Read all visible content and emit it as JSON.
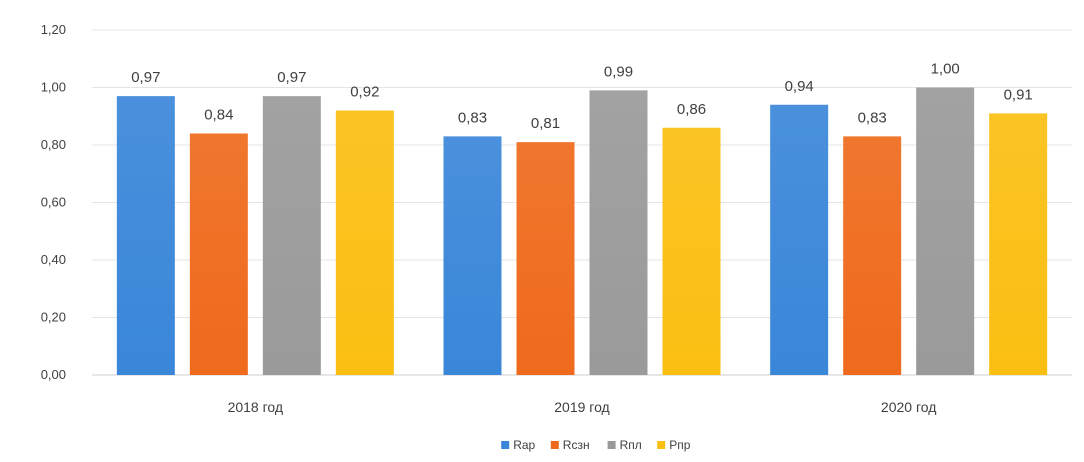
{
  "chart_data": {
    "type": "bar",
    "title": "",
    "xlabel": "",
    "ylabel": "",
    "categories": [
      "2018 год",
      "2019 год",
      "2020 год"
    ],
    "series": [
      {
        "name": "Rap",
        "values": [
          0.97,
          0.83,
          0.94
        ],
        "labels": [
          "0,97",
          "0,83",
          "0,94"
        ],
        "color": "#3a86d9"
      },
      {
        "name": "Rcзн",
        "values": [
          0.84,
          0.81,
          0.83
        ],
        "labels": [
          "0,84",
          "0,81",
          "0,83"
        ],
        "color": "#ef6a1c"
      },
      {
        "name": "Rпл",
        "values": [
          0.97,
          0.99,
          1.0
        ],
        "labels": [
          "0,97",
          "0,99",
          "1,00"
        ],
        "color": "#9a9a9a"
      },
      {
        "name": "Pпр",
        "values": [
          0.92,
          0.86,
          0.91
        ],
        "labels": [
          "0,92",
          "0,86",
          "0,91"
        ],
        "color": "#fbbf12"
      }
    ],
    "ylim": [
      0,
      1.2
    ],
    "yticks": [
      0,
      0.2,
      0.4,
      0.6,
      0.8,
      1.0,
      1.2
    ],
    "ytick_labels": [
      "0,00",
      "0,20",
      "0,40",
      "0,60",
      "0,80",
      "1,00",
      "1,20"
    ],
    "grid": true,
    "legend_position": "bottom-center"
  }
}
